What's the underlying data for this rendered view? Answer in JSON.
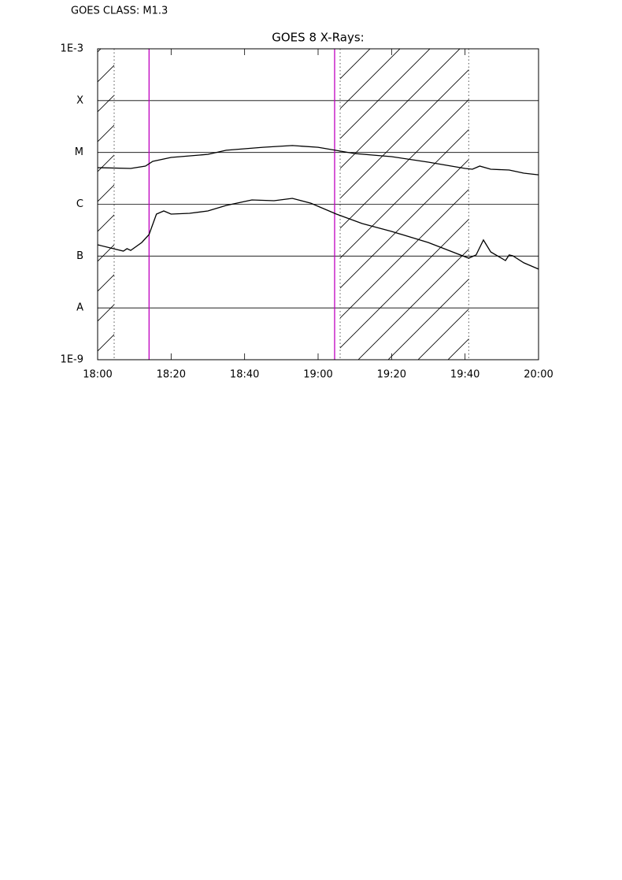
{
  "header": {
    "class_label": "GOES CLASS: M1.3"
  },
  "chart_data": {
    "type": "line",
    "title": "GOES 8 X-Rays:",
    "log_y": true,
    "grid": true,
    "xlim": [
      "18:00",
      "20:00"
    ],
    "xticks": [
      "18:00",
      "18:20",
      "18:40",
      "19:00",
      "19:20",
      "19:40",
      "20:00"
    ],
    "ylim": [
      1e-09,
      0.001
    ],
    "yticks": [
      {
        "value": 1e-09,
        "label": "1E-9"
      },
      {
        "value": 1e-08,
        "label": "A"
      },
      {
        "value": 1e-07,
        "label": "B"
      },
      {
        "value": 1e-06,
        "label": "C"
      },
      {
        "value": 1e-05,
        "label": "M"
      },
      {
        "value": 0.0001,
        "label": "X"
      },
      {
        "value": 0.001,
        "label": "1E-3"
      }
    ],
    "series": [
      {
        "color": "#000000",
        "x": [
          "18:00",
          "18:09",
          "18:13",
          "18:15",
          "18:20",
          "18:30",
          "18:35",
          "18:45",
          "18:53",
          "19:00",
          "19:10",
          "19:20",
          "19:30",
          "19:40",
          "19:42",
          "19:44",
          "19:47",
          "19:52",
          "19:56",
          "20:00"
        ],
        "values": [
          5.08e-06,
          4.91e-06,
          5.46e-06,
          6.73e-06,
          8e-06,
          9.2e-06,
          1.1e-05,
          1.26e-05,
          1.36e-05,
          1.26e-05,
          9.5e-06,
          8.3e-06,
          6.5e-06,
          4.91e-06,
          4.74e-06,
          5.46e-06,
          4.74e-06,
          4.58e-06,
          3.98e-06,
          3.7e-06
        ]
      },
      {
        "color": "#000000",
        "x": [
          "18:00",
          "18:07",
          "18:08",
          "18:09",
          "18:12",
          "18:14",
          "18:16",
          "18:18",
          "18:20",
          "18:25",
          "18:30",
          "18:35",
          "18:42",
          "18:48",
          "18:53",
          "18:58",
          "19:05",
          "19:12",
          "19:20",
          "19:30",
          "19:41",
          "19:43",
          "19:45",
          "19:47",
          "19:51",
          "19:52",
          "19:53",
          "19:56",
          "20:00"
        ],
        "values": [
          1.65e-07,
          1.25e-07,
          1.39e-07,
          1.29e-07,
          1.83e-07,
          2.6e-07,
          6.46e-07,
          7.43e-07,
          6.46e-07,
          6.68e-07,
          7.43e-07,
          9.5e-07,
          1.21e-06,
          1.17e-06,
          1.3e-06,
          1.05e-06,
          6.46e-07,
          4.25e-07,
          2.99e-07,
          1.83e-07,
          9.1e-08,
          1.05e-07,
          2.04e-07,
          1.2e-07,
          8.2e-08,
          1.05e-07,
          1.01e-07,
          7.4e-08,
          5.6e-08
        ]
      }
    ],
    "shaded": [
      [
        "18:00",
        "18:04:30"
      ],
      [
        "19:06",
        "19:41"
      ]
    ],
    "marker_color": "#c000c0",
    "markers": [
      "18:14",
      "19:04:30"
    ],
    "boundaries": [
      "18:04:30",
      "19:06",
      "19:41"
    ]
  }
}
